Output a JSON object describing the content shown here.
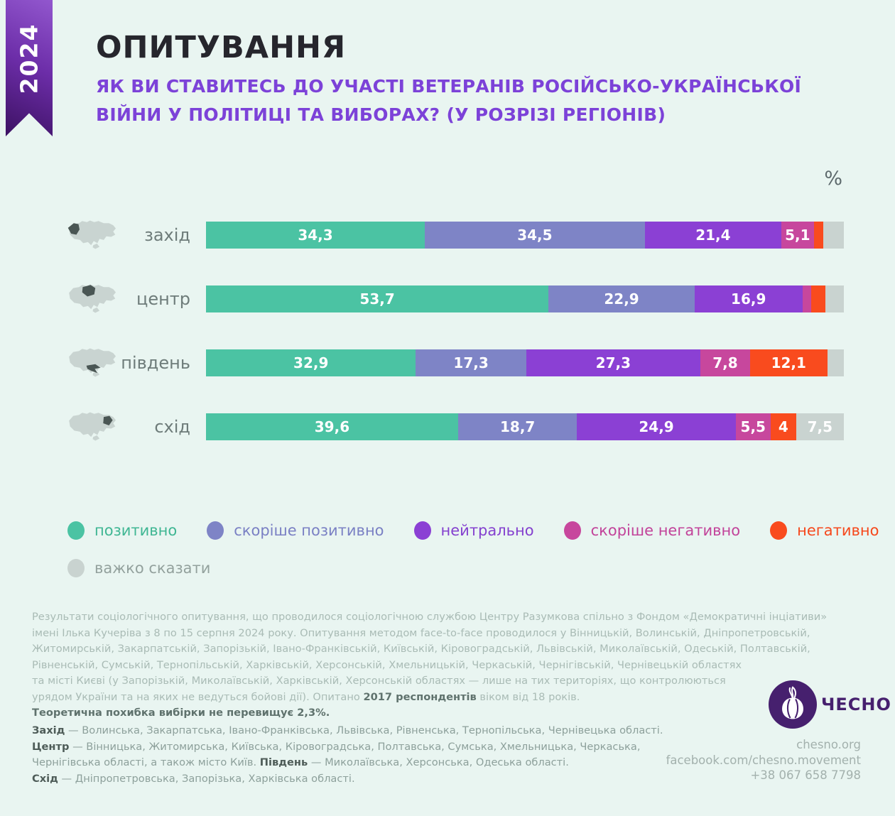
{
  "meta": {
    "year": "2024"
  },
  "header": {
    "title": "ОПИТУВАННЯ",
    "subtitle_line1": "ЯК ВИ СТАВИТЕСЬ ДО УЧАСТІ ВЕТЕРАНІВ РОСІЙСЬКО-УКРАЇНСЬКОЇ",
    "subtitle_line2": "ВІЙНИ У ПОЛІТИЦІ ТА ВИБОРАХ? (У РОЗРІЗІ РЕГІОНІВ)"
  },
  "chart": {
    "unit_label": "%"
  },
  "chart_data": {
    "type": "bar",
    "stacked": true,
    "orientation": "horizontal",
    "unit": "%",
    "categories": [
      "захід",
      "центр",
      "південь",
      "схід"
    ],
    "series": [
      {
        "name": "позитивно",
        "color": "#4bc3a3",
        "values": [
          34.3,
          53.7,
          32.9,
          39.6
        ],
        "labels": [
          "34,3",
          "53,7",
          "32,9",
          "39,6"
        ]
      },
      {
        "name": "скоріше позитивно",
        "color": "#7e84c6",
        "values": [
          34.5,
          22.9,
          17.3,
          18.7
        ],
        "labels": [
          "34,5",
          "22,9",
          "17,3",
          "18,7"
        ]
      },
      {
        "name": "нейтрально",
        "color": "#8b40d4",
        "values": [
          21.4,
          16.9,
          27.3,
          24.9
        ],
        "labels": [
          "21,4",
          "16,9",
          "27,3",
          "24,9"
        ]
      },
      {
        "name": "скоріше негативно",
        "color": "#c7479d",
        "values": [
          5.1,
          1.4,
          7.8,
          5.5
        ],
        "labels": [
          "5,1",
          "",
          "7,8",
          "5,5"
        ]
      },
      {
        "name": "негативно",
        "color": "#f94b1e",
        "values": [
          1.5,
          2.2,
          12.1,
          4.0
        ],
        "labels": [
          "",
          "",
          "12,1",
          "4"
        ]
      },
      {
        "name": "важко сказати",
        "color": "#c9d3d0",
        "values": [
          3.2,
          2.9,
          2.6,
          7.5
        ],
        "labels": [
          "",
          "",
          "",
          "7,5"
        ]
      }
    ]
  },
  "legend": [
    {
      "label": "позитивно",
      "color": "#4bc3a3",
      "text_color": "#3fb693"
    },
    {
      "label": "скоріше позитивно",
      "color": "#7e84c6",
      "text_color": "#7a80c4"
    },
    {
      "label": "нейтрально",
      "color": "#8b40d4",
      "text_color": "#8440cf"
    },
    {
      "label": "скоріше негативно",
      "color": "#c7479d",
      "text_color": "#c2439a"
    },
    {
      "label": "негативно",
      "color": "#f94b1e",
      "text_color": "#f6481c"
    },
    {
      "label": "важко сказати",
      "color": "#c9d3d0",
      "text_color": "#93a19d"
    }
  ],
  "source": {
    "lines": [
      "Результати соціологічного опитування, що проводилося  соціологічною службою Центру Разумкова спільно з Фондом «Демократичні інціативи»",
      "імені Ілька Кучеріва з 8 по 15 серпня 2024 року. Опитування методом face-to-face проводилося у Вінницькій, Волинській, Дніпропетровській,",
      "Житомирській, Закарпатській, Запорізькій, Івано-Франківській, Київській, Кіровоградській, Львівській, Миколаївській, Одеській, Полтавській,",
      "Рівненській, Сумській, Тернопільській, Харківській, Херсонській, Хмельницькій, Черкаській, Чернігівській, Чернівецькій областях",
      "та місті Києві (у Запорізькій, Миколаївській, Харківській, Херсонській областях — лише на тих територіях, що контролюються"
    ],
    "line6_pre": "урядом України та на яких не ведуться бойові дії).  Опитано ",
    "line6_bold": "2017 респондентів",
    "line6_post": " віком від 18 років.",
    "line7_bold": "Теоретична похибка вибірки не перевищує 2,3%."
  },
  "regions_footnote": {
    "l1_bold": "Захід",
    "l1_text": " — Волинська, Закарпатська, Івано-Франківська, Львівська, Рівненська, Тернопільська, Чернівецька області.",
    "l2_bold": "Центр",
    "l2_text": " — Вінницька, Житомирська, Київська, Кіровоградська, Полтавська, Сумська, Хмельницька, Черкаська,",
    "l3_pre": "Чернігівська області, а також місто Київ. ",
    "l3_bold": "Південь",
    "l3_post": " — Миколаївська, Херсонська, Одеська області.",
    "l4_bold": "Схід",
    "l4_text": " — Дніпропетровська, Запорізька, Харківська області."
  },
  "brand": {
    "name": "ЧЕСНО",
    "website": "chesno.org",
    "facebook": "facebook.com/chesno.movement",
    "phone": "+38 067 658 7798"
  }
}
